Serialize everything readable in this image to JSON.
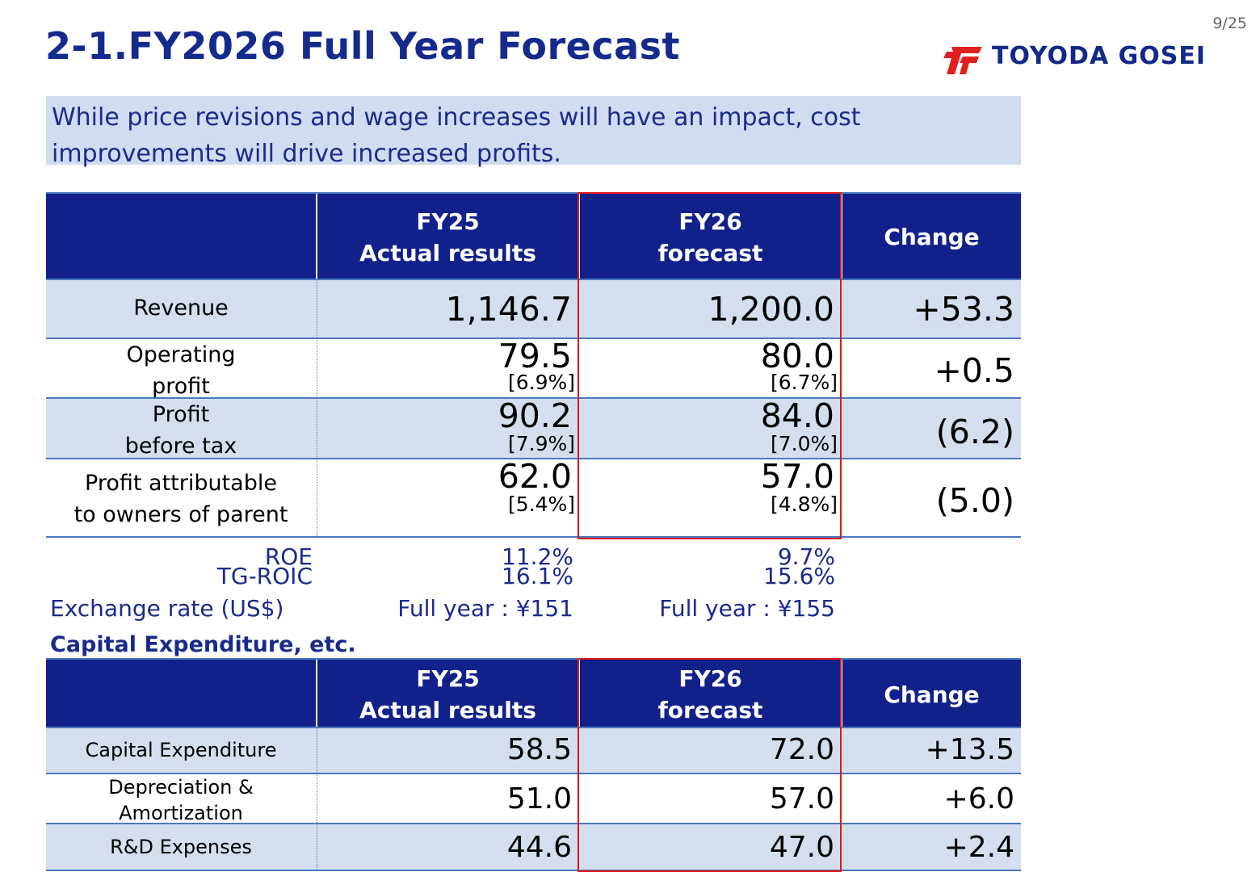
{
  "page_number": "9/25",
  "title": "2-1.FY2026 Full Year Forecast",
  "logo": {
    "text": "TOYODA GOSEI",
    "color": "#14288a",
    "mark_color": "#e02020"
  },
  "summary": "While price revisions and wage increases will have an impact, cost improvements will drive increased profits.",
  "colors": {
    "header_bg": "#12218a",
    "row_shade": "#d3dfef",
    "highlight_border": "#e01818",
    "accent_text": "#1a2a8c"
  },
  "forecast_table": {
    "headers": {
      "fy25": [
        "FY25",
        "Actual results"
      ],
      "fy26": [
        "FY26",
        "forecast"
      ],
      "change": "Change"
    },
    "rows": [
      {
        "label": [
          "Revenue"
        ],
        "fy25": "1,146.7",
        "fy25_pct": "",
        "fy26": "1,200.0",
        "fy26_pct": "",
        "change": "+53.3"
      },
      {
        "label": [
          "Operating",
          "profit"
        ],
        "fy25": "79.5",
        "fy25_pct": "[6.9%]",
        "fy26": "80.0",
        "fy26_pct": "[6.7%]",
        "change": "+0.5"
      },
      {
        "label": [
          "Profit",
          "before tax"
        ],
        "fy25": "90.2",
        "fy25_pct": "[7.9%]",
        "fy26": "84.0",
        "fy26_pct": "[7.0%]",
        "change": "(6.2)"
      },
      {
        "label": [
          "Profit attributable",
          "to owners of parent"
        ],
        "fy25": "62.0",
        "fy25_pct": "[5.4%]",
        "fy26": "57.0",
        "fy26_pct": "[4.8%]",
        "change": "(5.0)"
      }
    ]
  },
  "metrics": {
    "roe_label": "ROE",
    "roic_label": "TG-ROIC",
    "roe_fy25": "11.2%",
    "roic_fy25": "16.1%",
    "roe_fy26": "9.7%",
    "roic_fy26": "15.6%",
    "fx_label": "Exchange rate (US$)",
    "fx_fy25": "Full year : ¥151",
    "fx_fy26": "Full year : ¥155"
  },
  "capex_section_title": "Capital Expenditure, etc.",
  "capex_table": {
    "headers": {
      "fy25": [
        "FY25",
        "Actual results"
      ],
      "fy26": [
        "FY26",
        "forecast"
      ],
      "change": "Change"
    },
    "rows": [
      {
        "label": [
          "Capital Expenditure"
        ],
        "fy25": "58.5",
        "fy26": "72.0",
        "change": "+13.5"
      },
      {
        "label": [
          "Depreciation &",
          "Amortization"
        ],
        "fy25": "51.0",
        "fy26": "57.0",
        "change": "+6.0"
      },
      {
        "label": [
          "R&D Expenses"
        ],
        "fy25": "44.6",
        "fy26": "47.0",
        "change": "+2.4"
      }
    ]
  }
}
